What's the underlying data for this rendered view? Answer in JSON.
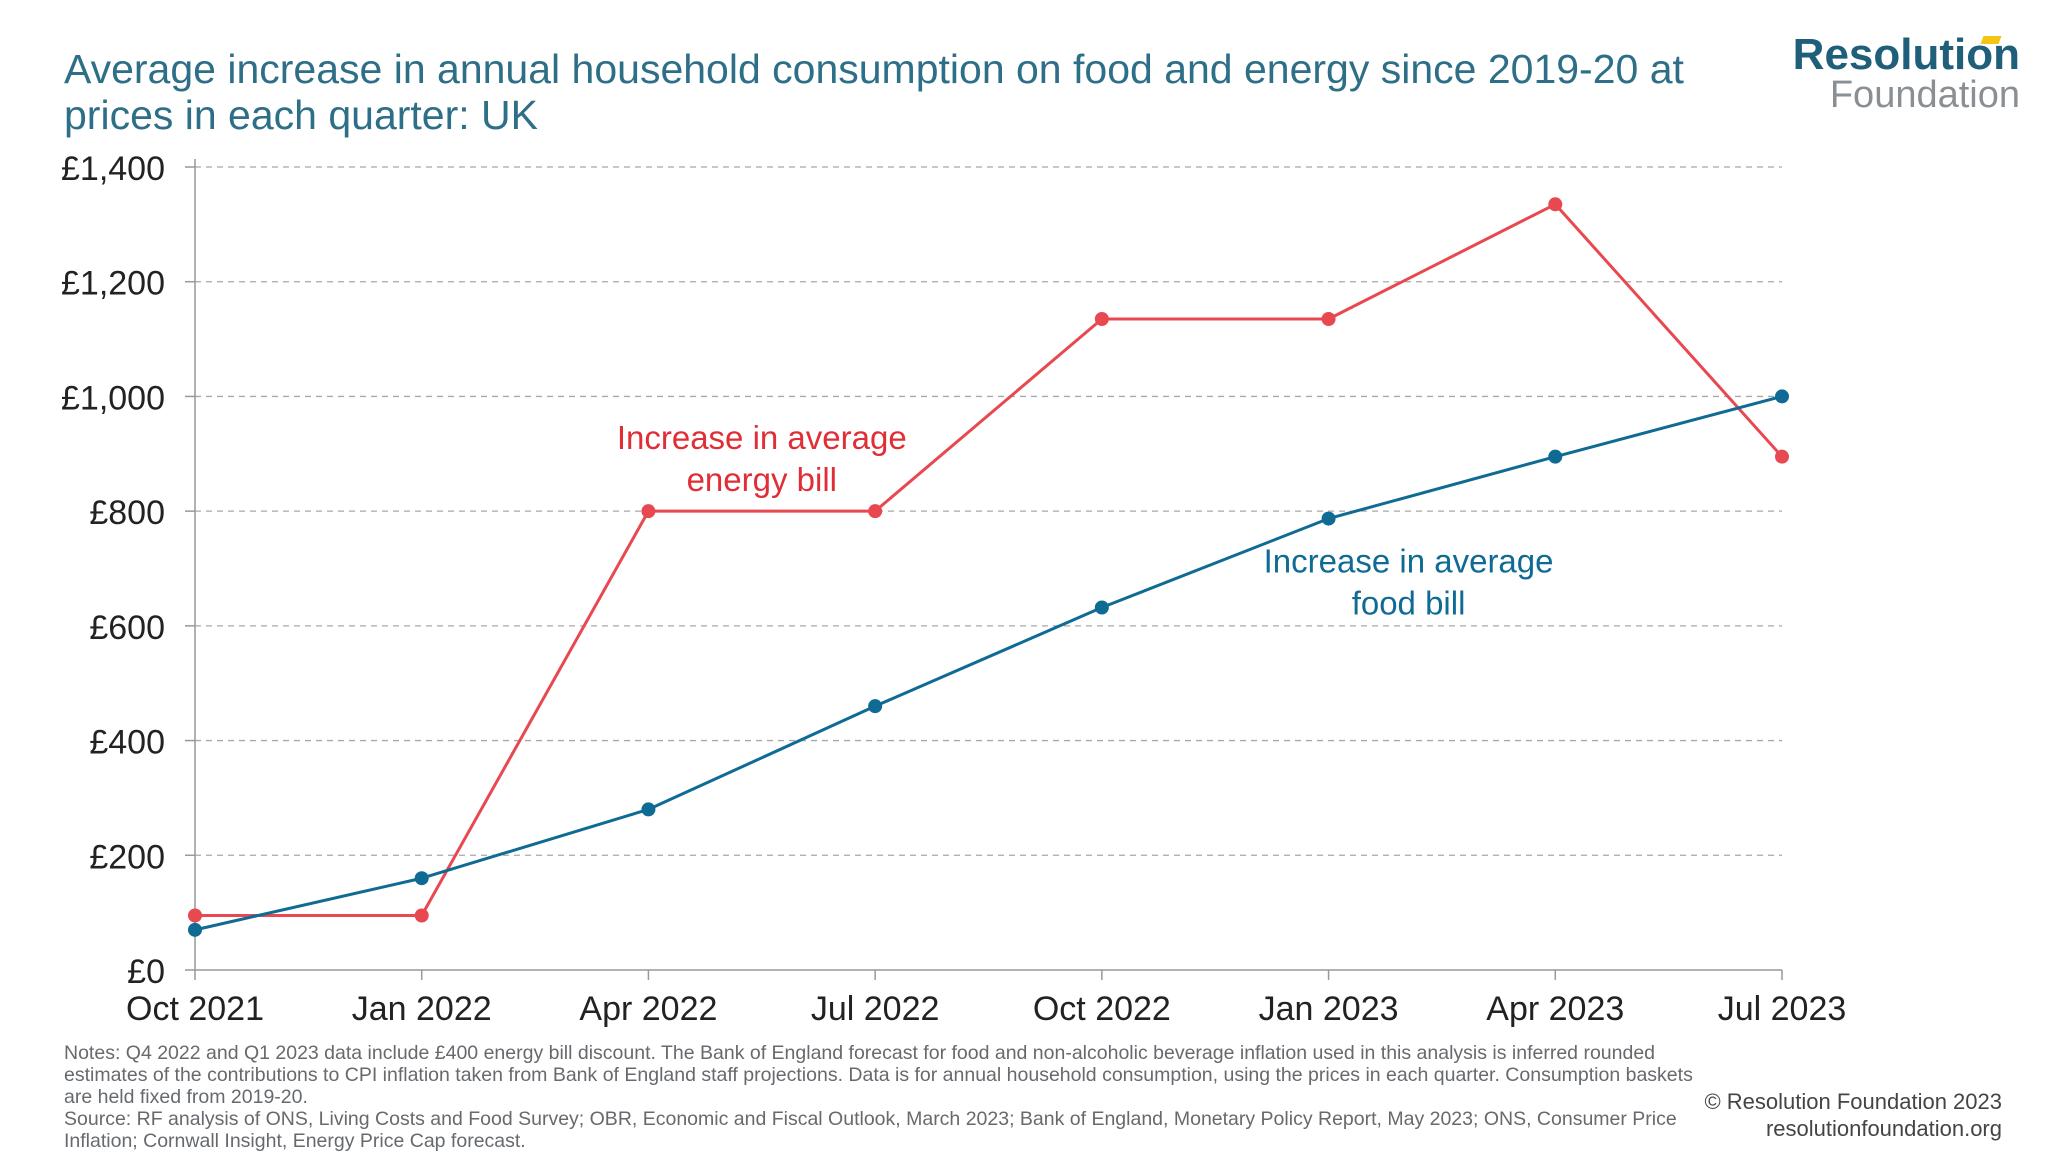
{
  "title": "Average increase in annual household consumption on food and energy since 2019-20 at prices in each quarter: UK",
  "logo": {
    "main": "Resolution",
    "sub": "Foundation"
  },
  "chart_data": {
    "type": "line",
    "title": "Average increase in annual household consumption on food and energy since 2019-20 at prices in each quarter: UK",
    "xlabel": "",
    "ylabel": "",
    "categories": [
      "Oct 2021",
      "Jan 2022",
      "Apr 2022",
      "Jul 2022",
      "Oct 2022",
      "Jan 2023",
      "Apr 2023",
      "Jul 2023"
    ],
    "ylim": [
      0,
      1400
    ],
    "yticks": [
      0,
      200,
      400,
      600,
      800,
      1000,
      1200,
      1400
    ],
    "ytick_labels": [
      "£0",
      "£200",
      "£400",
      "£600",
      "£800",
      "£1,000",
      "£1,200",
      "£1,400"
    ],
    "grid": true,
    "series": [
      {
        "name": "Increase in average energy bill",
        "label_lines": [
          "Increase in average",
          "energy bill"
        ],
        "color": "#e8484f",
        "values": [
          95,
          95,
          800,
          800,
          1135,
          1135,
          1335,
          895
        ]
      },
      {
        "name": "Increase in average food bill",
        "label_lines": [
          "Increase in average",
          "food bill"
        ],
        "color": "#0f6b94",
        "values": [
          70,
          160,
          280,
          460,
          632,
          787,
          895,
          1000
        ]
      }
    ]
  },
  "notes": "Notes: Q4 2022 and Q1 2023 data include £400 energy bill discount. The Bank of England forecast for food and non-alcoholic beverage inflation used in this analysis is inferred rounded estimates of the contributions to CPI inflation taken from Bank of England staff projections. Data is for annual household consumption, using the prices in each quarter. Consumption baskets are held fixed from 2019-20.",
  "source": "Source: RF analysis of ONS, Living Costs and Food Survey; OBR, Economic and Fiscal Outlook, March 2023; Bank of England, Monetary Policy Report, May 2023; ONS, Consumer Price Inflation; Cornwall Insight, Energy Price Cap forecast.",
  "copyright": "© Resolution Foundation 2023",
  "website": "resolutionfoundation.org"
}
